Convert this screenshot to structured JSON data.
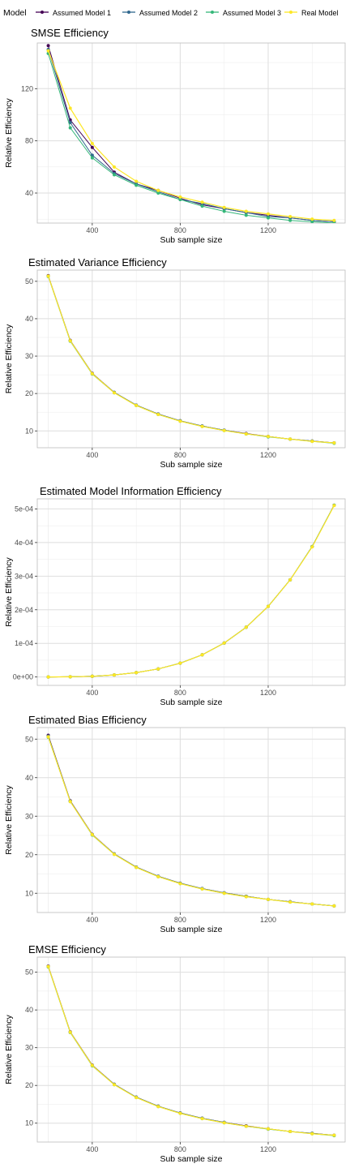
{
  "legend": {
    "title": "Model",
    "items": [
      {
        "label": "Assumed Model 1",
        "color": "#440154"
      },
      {
        "label": "Assumed Model 2",
        "color": "#31688E"
      },
      {
        "label": "Assumed Model 3",
        "color": "#35B779"
      },
      {
        "label": "Real Model",
        "color": "#FDE725"
      }
    ]
  },
  "chart_data": [
    {
      "type": "line",
      "title": "SMSE Efficiency",
      "xlabel": "Sub sample size",
      "ylabel": "Relative Efficiency",
      "xlim": [
        150,
        1550
      ],
      "ylim": [
        17,
        155
      ],
      "xticks": [
        400,
        800,
        1200
      ],
      "yticks": [
        40,
        80,
        120
      ],
      "ytick_labels": [
        "40",
        "80",
        "120"
      ],
      "x": [
        200,
        300,
        400,
        500,
        600,
        700,
        800,
        900,
        1000,
        1100,
        1200,
        1300,
        1400,
        1500
      ],
      "series": [
        {
          "name": "Assumed Model 1",
          "values": [
            153,
            96,
            75,
            56,
            47,
            42,
            36,
            31,
            28,
            25,
            23,
            21,
            19,
            18
          ]
        },
        {
          "name": "Assumed Model 2",
          "values": [
            150,
            94,
            69,
            55,
            47,
            41,
            35,
            32,
            28,
            25,
            22,
            21,
            19,
            18
          ]
        },
        {
          "name": "Assumed Model 3",
          "values": [
            147,
            90,
            67,
            54,
            46,
            40,
            35,
            30,
            26,
            23,
            21,
            19,
            18,
            17
          ]
        },
        {
          "name": "Real Model",
          "values": [
            149,
            105,
            78,
            60,
            49,
            42,
            37,
            33,
            29,
            26,
            24,
            22,
            20,
            19
          ]
        }
      ]
    },
    {
      "type": "line",
      "title": "Estimated Variance Efficiency",
      "xlabel": "Sub sample size",
      "ylabel": "Relative Efficiency",
      "xlim": [
        150,
        1550
      ],
      "ylim": [
        5.5,
        53
      ],
      "xticks": [
        400,
        800,
        1200
      ],
      "yticks": [
        10,
        20,
        30,
        40,
        50
      ],
      "ytick_labels": [
        "10",
        "20",
        "30",
        "40",
        "50"
      ],
      "x": [
        200,
        300,
        400,
        500,
        600,
        700,
        800,
        900,
        1000,
        1100,
        1200,
        1300,
        1400,
        1500
      ],
      "series": [
        {
          "name": "Assumed Model 1",
          "values": [
            51.5,
            34.2,
            25.4,
            20.3,
            16.9,
            14.5,
            12.7,
            11.3,
            10.2,
            9.3,
            8.5,
            7.8,
            7.3,
            6.8
          ]
        },
        {
          "name": "Assumed Model 2",
          "values": [
            51.4,
            34.1,
            25.3,
            20.3,
            16.9,
            14.5,
            12.7,
            11.3,
            10.2,
            9.2,
            8.5,
            7.8,
            7.3,
            6.8
          ]
        },
        {
          "name": "Assumed Model 3",
          "values": [
            51.3,
            34.0,
            25.2,
            20.2,
            16.8,
            14.4,
            12.6,
            11.2,
            10.1,
            9.2,
            8.4,
            7.8,
            7.2,
            6.7
          ]
        },
        {
          "name": "Real Model",
          "values": [
            51.4,
            34.1,
            25.3,
            20.2,
            16.8,
            14.4,
            12.6,
            11.2,
            10.1,
            9.2,
            8.5,
            7.8,
            7.2,
            6.8
          ]
        }
      ]
    },
    {
      "type": "line",
      "title": "Estimated Model Information Efficiency",
      "xlabel": "Sub sample size",
      "ylabel": "Relative Efficiency",
      "xlim": [
        150,
        1550
      ],
      "ylim": [
        -2.5e-05,
        0.00053
      ],
      "xticks": [
        400,
        800,
        1200
      ],
      "yticks": [
        0,
        0.0001,
        0.0002,
        0.0003,
        0.0004,
        0.0005
      ],
      "ytick_labels": [
        "0e+00",
        "1e-04",
        "2e-04",
        "3e-04",
        "4e-04",
        "5e-04"
      ],
      "x": [
        200,
        300,
        400,
        500,
        600,
        700,
        800,
        900,
        1000,
        1100,
        1200,
        1300,
        1400,
        1500
      ],
      "series": [
        {
          "name": "Assumed Model 1",
          "values": [
            1e-07,
            6e-07,
            2e-06,
            6e-06,
            1.3e-05,
            2.4e-05,
            4.1e-05,
            6.6e-05,
            0.000101,
            0.000148,
            0.00021,
            0.000289,
            0.000388,
            0.000511
          ]
        },
        {
          "name": "Assumed Model 2",
          "values": [
            1e-07,
            6e-07,
            2e-06,
            6e-06,
            1.3e-05,
            2.4e-05,
            4.1e-05,
            6.6e-05,
            0.000101,
            0.000148,
            0.00021,
            0.000289,
            0.000388,
            0.000511
          ]
        },
        {
          "name": "Assumed Model 3",
          "values": [
            1e-07,
            6e-07,
            2e-06,
            6e-06,
            1.3e-05,
            2.4e-05,
            4.1e-05,
            6.6e-05,
            0.000101,
            0.000148,
            0.00021,
            0.000289,
            0.000388,
            0.000511
          ]
        },
        {
          "name": "Real Model",
          "values": [
            1e-07,
            6e-07,
            2e-06,
            6e-06,
            1.3e-05,
            2.4e-05,
            4.1e-05,
            6.6e-05,
            0.000101,
            0.000148,
            0.00021,
            0.000289,
            0.000387,
            0.00051
          ]
        }
      ]
    },
    {
      "type": "line",
      "title": "Estimated Bias Efficiency",
      "xlabel": "Sub sample size",
      "ylabel": "Relative Efficiency",
      "xlim": [
        150,
        1550
      ],
      "ylim": [
        5,
        53
      ],
      "xticks": [
        400,
        800,
        1200
      ],
      "yticks": [
        10,
        20,
        30,
        40,
        50
      ],
      "ytick_labels": [
        "10",
        "20",
        "30",
        "40",
        "50"
      ],
      "x": [
        200,
        300,
        400,
        500,
        600,
        700,
        800,
        900,
        1000,
        1100,
        1200,
        1300,
        1400,
        1500
      ],
      "series": [
        {
          "name": "Assumed Model 1",
          "values": [
            51.0,
            34.0,
            25.3,
            20.2,
            16.8,
            14.4,
            12.6,
            11.2,
            10.1,
            9.2,
            8.4,
            7.8,
            7.2,
            6.7
          ]
        },
        {
          "name": "Assumed Model 2",
          "values": [
            50.8,
            33.9,
            25.2,
            20.2,
            16.8,
            14.4,
            12.6,
            11.2,
            10.1,
            9.2,
            8.4,
            7.8,
            7.2,
            6.7
          ]
        },
        {
          "name": "Assumed Model 3",
          "values": [
            50.5,
            33.8,
            25.1,
            20.1,
            16.7,
            14.3,
            12.5,
            11.1,
            10.0,
            9.1,
            8.4,
            7.7,
            7.2,
            6.7
          ]
        },
        {
          "name": "Real Model",
          "values": [
            50.6,
            33.8,
            25.2,
            20.1,
            16.7,
            14.3,
            12.5,
            11.1,
            10.0,
            9.1,
            8.4,
            7.7,
            7.2,
            6.7
          ]
        }
      ]
    },
    {
      "type": "line",
      "title": "EMSE Efficiency",
      "xlabel": "Sub sample size",
      "ylabel": "Relative Efficiency",
      "xlim": [
        150,
        1550
      ],
      "ylim": [
        5,
        54
      ],
      "xticks": [
        400,
        800,
        1200
      ],
      "yticks": [
        10,
        20,
        30,
        40,
        50
      ],
      "ytick_labels": [
        "10",
        "20",
        "30",
        "40",
        "50"
      ],
      "x": [
        200,
        300,
        400,
        500,
        600,
        700,
        800,
        900,
        1000,
        1100,
        1200,
        1300,
        1400,
        1500
      ],
      "series": [
        {
          "name": "Assumed Model 1",
          "values": [
            51.6,
            34.2,
            25.4,
            20.3,
            16.9,
            14.5,
            12.7,
            11.3,
            10.2,
            9.3,
            8.5,
            7.8,
            7.3,
            6.8
          ]
        },
        {
          "name": "Assumed Model 2",
          "values": [
            51.5,
            34.1,
            25.3,
            20.3,
            16.9,
            14.5,
            12.7,
            11.3,
            10.2,
            9.2,
            8.5,
            7.8,
            7.3,
            6.8
          ]
        },
        {
          "name": "Assumed Model 3",
          "values": [
            51.4,
            34.0,
            25.2,
            20.2,
            16.8,
            14.4,
            12.6,
            11.2,
            10.1,
            9.2,
            8.4,
            7.8,
            7.2,
            6.7
          ]
        },
        {
          "name": "Real Model",
          "values": [
            51.5,
            34.1,
            25.3,
            20.2,
            16.8,
            14.4,
            12.6,
            11.2,
            10.1,
            9.2,
            8.5,
            7.8,
            7.2,
            6.8
          ]
        }
      ]
    }
  ]
}
